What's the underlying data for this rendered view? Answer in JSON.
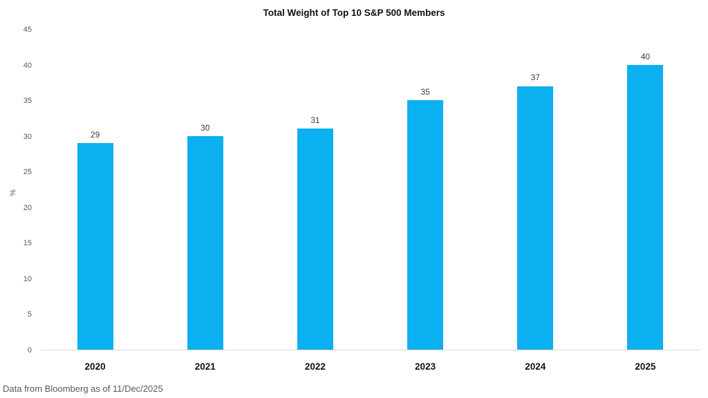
{
  "title": "Total Weight of Top 10 S&P 500 Members",
  "footer": "Data from Bloomberg as of 11/Dec/2025",
  "chart_data": {
    "type": "bar",
    "categories": [
      "2020",
      "2021",
      "2022",
      "2023",
      "2024",
      "2025"
    ],
    "values": [
      29,
      30,
      31,
      35,
      37,
      40
    ],
    "value_labels": [
      "29",
      "30",
      "31",
      "35",
      "37",
      "40"
    ],
    "title": "Total Weight of Top 10 S&P 500 Members",
    "xlabel": "",
    "ylabel": "%",
    "ylim": [
      0,
      45
    ],
    "yticks": [
      0,
      5,
      10,
      15,
      20,
      25,
      30,
      35,
      40,
      45
    ],
    "grid": false,
    "legend": false,
    "layout": {
      "legend_position": "none",
      "bar_labels_position": "above"
    }
  },
  "colors": {
    "bar": "#0bb0f0",
    "axis_line": "#d9d9d9",
    "tick_text": "#595959",
    "value_text": "#3d3d3d",
    "title_text": "#111111",
    "footer_text": "#595959",
    "background": "#ffffff"
  }
}
